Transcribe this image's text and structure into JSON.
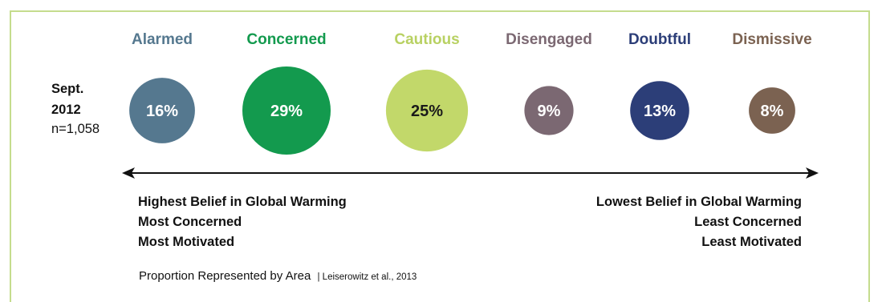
{
  "chart_data": {
    "type": "bubble",
    "period_label": "Sept.",
    "period_year": "2012",
    "sample_size": "n=1,058",
    "categories": [
      "Alarmed",
      "Concerned",
      "Cautious",
      "Disengaged",
      "Doubtful",
      "Dismissive"
    ],
    "values": [
      16,
      29,
      25,
      9,
      13,
      8
    ],
    "value_labels": [
      "16%",
      "29%",
      "25%",
      "9%",
      "13%",
      "8%"
    ],
    "colors": [
      "#55788f",
      "#139a4e",
      "#c2d86a",
      "#7b6872",
      "#2c3e78",
      "#7b6251"
    ],
    "category_label_colors": [
      "#55788f",
      "#139a4e",
      "#b8d162",
      "#7b6872",
      "#2c3e78",
      "#7b6251"
    ],
    "axis": {
      "left_end": [
        "Highest Belief in Global Warming",
        "Most Concerned",
        "Most Motivated"
      ],
      "right_end": [
        "Lowest Belief in Global Warming",
        "Least Concerned",
        "Least Motivated"
      ]
    },
    "note": "Proportion Represented by Area",
    "citation": "| Leiserowitz et al., 2013"
  }
}
